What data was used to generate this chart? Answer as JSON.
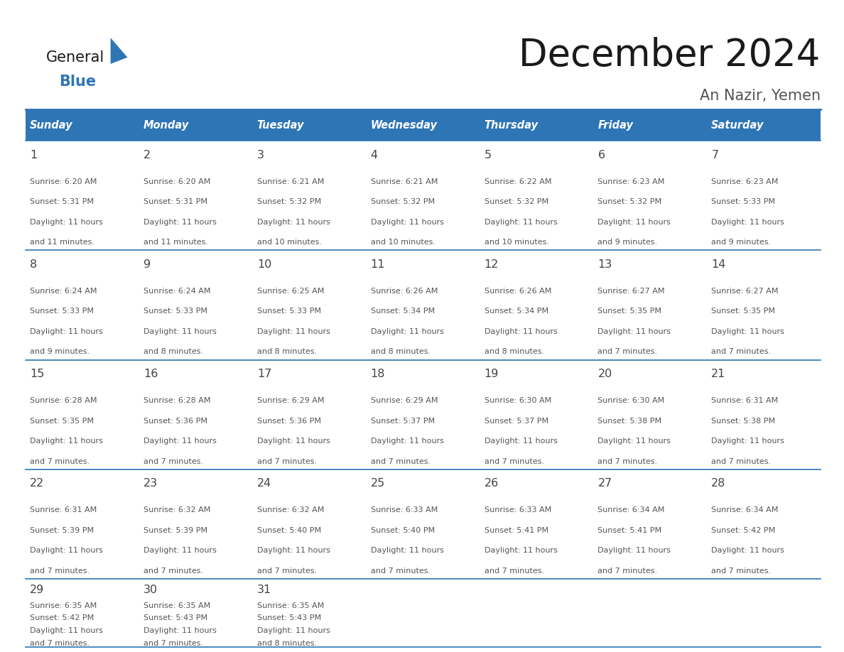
{
  "title": "December 2024",
  "subtitle": "An Nazir, Yemen",
  "header_color": "#2E75B6",
  "header_text_color": "#FFFFFF",
  "cell_bg_white": "#FFFFFF",
  "cell_bg_gray": "#F2F2F2",
  "body_text_color": "#555555",
  "line_color": "#2E75B6",
  "logo_general_color": "#1a1a1a",
  "logo_blue_color": "#2E75B6",
  "title_color": "#1a1a1a",
  "subtitle_color": "#555555",
  "weekdays": [
    "Sunday",
    "Monday",
    "Tuesday",
    "Wednesday",
    "Thursday",
    "Friday",
    "Saturday"
  ],
  "days": [
    {
      "day": 1,
      "col": 0,
      "row": 0,
      "sunrise": "6:20 AM",
      "sunset": "5:31 PM",
      "daylight_min": "11 minutes."
    },
    {
      "day": 2,
      "col": 1,
      "row": 0,
      "sunrise": "6:20 AM",
      "sunset": "5:31 PM",
      "daylight_min": "11 minutes."
    },
    {
      "day": 3,
      "col": 2,
      "row": 0,
      "sunrise": "6:21 AM",
      "sunset": "5:32 PM",
      "daylight_min": "10 minutes."
    },
    {
      "day": 4,
      "col": 3,
      "row": 0,
      "sunrise": "6:21 AM",
      "sunset": "5:32 PM",
      "daylight_min": "10 minutes."
    },
    {
      "day": 5,
      "col": 4,
      "row": 0,
      "sunrise": "6:22 AM",
      "sunset": "5:32 PM",
      "daylight_min": "10 minutes."
    },
    {
      "day": 6,
      "col": 5,
      "row": 0,
      "sunrise": "6:23 AM",
      "sunset": "5:32 PM",
      "daylight_min": "9 minutes."
    },
    {
      "day": 7,
      "col": 6,
      "row": 0,
      "sunrise": "6:23 AM",
      "sunset": "5:33 PM",
      "daylight_min": "9 minutes."
    },
    {
      "day": 8,
      "col": 0,
      "row": 1,
      "sunrise": "6:24 AM",
      "sunset": "5:33 PM",
      "daylight_min": "9 minutes."
    },
    {
      "day": 9,
      "col": 1,
      "row": 1,
      "sunrise": "6:24 AM",
      "sunset": "5:33 PM",
      "daylight_min": "8 minutes."
    },
    {
      "day": 10,
      "col": 2,
      "row": 1,
      "sunrise": "6:25 AM",
      "sunset": "5:33 PM",
      "daylight_min": "8 minutes."
    },
    {
      "day": 11,
      "col": 3,
      "row": 1,
      "sunrise": "6:26 AM",
      "sunset": "5:34 PM",
      "daylight_min": "8 minutes."
    },
    {
      "day": 12,
      "col": 4,
      "row": 1,
      "sunrise": "6:26 AM",
      "sunset": "5:34 PM",
      "daylight_min": "8 minutes."
    },
    {
      "day": 13,
      "col": 5,
      "row": 1,
      "sunrise": "6:27 AM",
      "sunset": "5:35 PM",
      "daylight_min": "7 minutes."
    },
    {
      "day": 14,
      "col": 6,
      "row": 1,
      "sunrise": "6:27 AM",
      "sunset": "5:35 PM",
      "daylight_min": "7 minutes."
    },
    {
      "day": 15,
      "col": 0,
      "row": 2,
      "sunrise": "6:28 AM",
      "sunset": "5:35 PM",
      "daylight_min": "7 minutes."
    },
    {
      "day": 16,
      "col": 1,
      "row": 2,
      "sunrise": "6:28 AM",
      "sunset": "5:36 PM",
      "daylight_min": "7 minutes."
    },
    {
      "day": 17,
      "col": 2,
      "row": 2,
      "sunrise": "6:29 AM",
      "sunset": "5:36 PM",
      "daylight_min": "7 minutes."
    },
    {
      "day": 18,
      "col": 3,
      "row": 2,
      "sunrise": "6:29 AM",
      "sunset": "5:37 PM",
      "daylight_min": "7 minutes."
    },
    {
      "day": 19,
      "col": 4,
      "row": 2,
      "sunrise": "6:30 AM",
      "sunset": "5:37 PM",
      "daylight_min": "7 minutes."
    },
    {
      "day": 20,
      "col": 5,
      "row": 2,
      "sunrise": "6:30 AM",
      "sunset": "5:38 PM",
      "daylight_min": "7 minutes."
    },
    {
      "day": 21,
      "col": 6,
      "row": 2,
      "sunrise": "6:31 AM",
      "sunset": "5:38 PM",
      "daylight_min": "7 minutes."
    },
    {
      "day": 22,
      "col": 0,
      "row": 3,
      "sunrise": "6:31 AM",
      "sunset": "5:39 PM",
      "daylight_min": "7 minutes."
    },
    {
      "day": 23,
      "col": 1,
      "row": 3,
      "sunrise": "6:32 AM",
      "sunset": "5:39 PM",
      "daylight_min": "7 minutes."
    },
    {
      "day": 24,
      "col": 2,
      "row": 3,
      "sunrise": "6:32 AM",
      "sunset": "5:40 PM",
      "daylight_min": "7 minutes."
    },
    {
      "day": 25,
      "col": 3,
      "row": 3,
      "sunrise": "6:33 AM",
      "sunset": "5:40 PM",
      "daylight_min": "7 minutes."
    },
    {
      "day": 26,
      "col": 4,
      "row": 3,
      "sunrise": "6:33 AM",
      "sunset": "5:41 PM",
      "daylight_min": "7 minutes."
    },
    {
      "day": 27,
      "col": 5,
      "row": 3,
      "sunrise": "6:34 AM",
      "sunset": "5:41 PM",
      "daylight_min": "7 minutes."
    },
    {
      "day": 28,
      "col": 6,
      "row": 3,
      "sunrise": "6:34 AM",
      "sunset": "5:42 PM",
      "daylight_min": "7 minutes."
    },
    {
      "day": 29,
      "col": 0,
      "row": 4,
      "sunrise": "6:35 AM",
      "sunset": "5:42 PM",
      "daylight_min": "7 minutes."
    },
    {
      "day": 30,
      "col": 1,
      "row": 4,
      "sunrise": "6:35 AM",
      "sunset": "5:43 PM",
      "daylight_min": "7 minutes."
    },
    {
      "day": 31,
      "col": 2,
      "row": 4,
      "sunrise": "6:35 AM",
      "sunset": "5:43 PM",
      "daylight_min": "8 minutes."
    }
  ]
}
